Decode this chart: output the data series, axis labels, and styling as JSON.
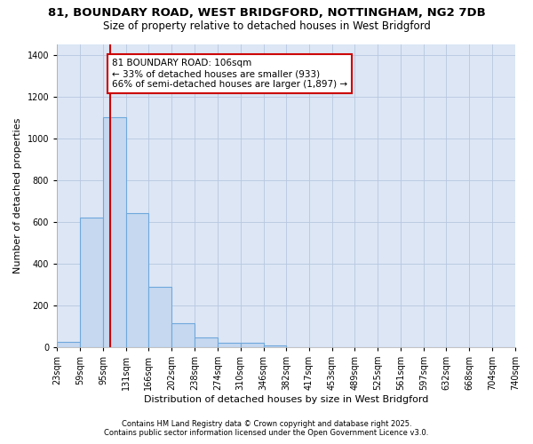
{
  "title_line1": "81, BOUNDARY ROAD, WEST BRIDGFORD, NOTTINGHAM, NG2 7DB",
  "title_line2": "Size of property relative to detached houses in West Bridgford",
  "xlabel": "Distribution of detached houses by size in West Bridgford",
  "ylabel": "Number of detached properties",
  "bin_edges": [
    23,
    59,
    95,
    131,
    166,
    202,
    238,
    274,
    310,
    346,
    382,
    417,
    453,
    489,
    525,
    561,
    597,
    632,
    668,
    704,
    740
  ],
  "bar_heights": [
    25,
    620,
    1100,
    640,
    290,
    115,
    48,
    20,
    20,
    10,
    0,
    0,
    0,
    0,
    0,
    0,
    0,
    0,
    0,
    0
  ],
  "bar_color": "#c5d8f0",
  "bar_edge_color": "#6fa8dc",
  "bg_color": "#ffffff",
  "plot_bg_color": "#dce6f5",
  "grid_color": "#b8c8e0",
  "vline_x": 106,
  "vline_color": "#cc0000",
  "annotation_text": "81 BOUNDARY ROAD: 106sqm\n← 33% of detached houses are smaller (933)\n66% of semi-detached houses are larger (1,897) →",
  "annotation_box_color": "white",
  "annotation_box_edge": "#cc0000",
  "ylim": [
    0,
    1450
  ],
  "yticks": [
    0,
    200,
    400,
    600,
    800,
    1000,
    1200,
    1400
  ],
  "tick_labels": [
    "23sqm",
    "59sqm",
    "95sqm",
    "131sqm",
    "166sqm",
    "202sqm",
    "238sqm",
    "274sqm",
    "310sqm",
    "346sqm",
    "382sqm",
    "417sqm",
    "453sqm",
    "489sqm",
    "525sqm",
    "561sqm",
    "597sqm",
    "632sqm",
    "668sqm",
    "704sqm",
    "740sqm"
  ],
  "footer_line1": "Contains HM Land Registry data © Crown copyright and database right 2025.",
  "footer_line2": "Contains public sector information licensed under the Open Government Licence v3.0.",
  "title_fontsize": 9.5,
  "subtitle_fontsize": 8.5,
  "axis_label_fontsize": 8,
  "tick_fontsize": 7,
  "annotation_fontsize": 7.5,
  "footer_fontsize": 6
}
